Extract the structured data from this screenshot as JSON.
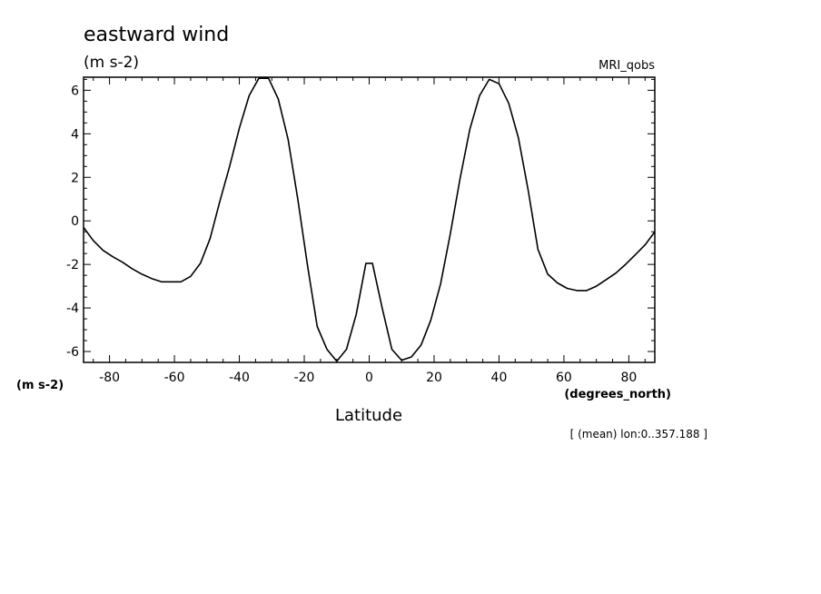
{
  "chart_data": {
    "type": "line",
    "title": "eastward wind",
    "subtitle": "(m s-2)",
    "model_label": "MRI_qobs",
    "ylabel_units": "(m s-2)",
    "xlabel_units": "(degrees_north)",
    "xlabel": "Latitude",
    "annotation": "[ (mean) lon:0..357.188 ]",
    "xlim": [
      -88,
      88
    ],
    "ylim": [
      -6.5,
      6.6
    ],
    "xticks": [
      -80,
      -60,
      -40,
      -20,
      0,
      20,
      40,
      60,
      80
    ],
    "xtick_labels": [
      "-80",
      "-60",
      "-40",
      "-20",
      "0",
      "20",
      "40",
      "60",
      "80"
    ],
    "yticks": [
      -6,
      -4,
      -2,
      0,
      2,
      4,
      6
    ],
    "ytick_labels": [
      "-6",
      "-4",
      "-2",
      "0",
      "2",
      "4",
      "6"
    ],
    "grid": false,
    "series": [
      {
        "x": [
          -88,
          -85,
          -82,
          -79,
          -76,
          -73,
          -70,
          -67,
          -64,
          -61,
          -58,
          -55,
          -52,
          -49,
          -46,
          -43,
          -40,
          -37,
          -34,
          -31,
          -28,
          -25,
          -22,
          -19,
          -16,
          -13,
          -10,
          -7,
          -4,
          -1,
          1,
          4,
          7,
          10,
          13,
          16,
          19,
          22,
          25,
          28,
          31,
          34,
          37,
          40,
          43,
          46,
          49,
          52,
          55,
          58,
          61,
          64,
          67,
          70,
          73,
          76,
          79,
          82,
          85,
          88
        ],
        "values": [
          -0.3,
          -0.9,
          -1.35,
          -1.65,
          -1.9,
          -2.2,
          -2.45,
          -2.65,
          -2.8,
          -2.8,
          -2.8,
          -2.55,
          -1.95,
          -0.8,
          0.9,
          2.5,
          4.25,
          5.75,
          6.55,
          6.55,
          5.6,
          3.75,
          1.0,
          -2.05,
          -4.85,
          -5.9,
          -6.45,
          -5.9,
          -4.3,
          -1.95,
          -1.95,
          -4.0,
          -5.9,
          -6.4,
          -6.25,
          -5.7,
          -4.55,
          -2.9,
          -0.6,
          1.95,
          4.2,
          5.75,
          6.5,
          6.3,
          5.4,
          3.8,
          1.4,
          -1.3,
          -2.45,
          -2.85,
          -3.1,
          -3.2,
          -3.2,
          -3.0,
          -2.7,
          -2.4,
          -2.0,
          -1.55,
          -1.1,
          -0.5
        ]
      }
    ]
  }
}
